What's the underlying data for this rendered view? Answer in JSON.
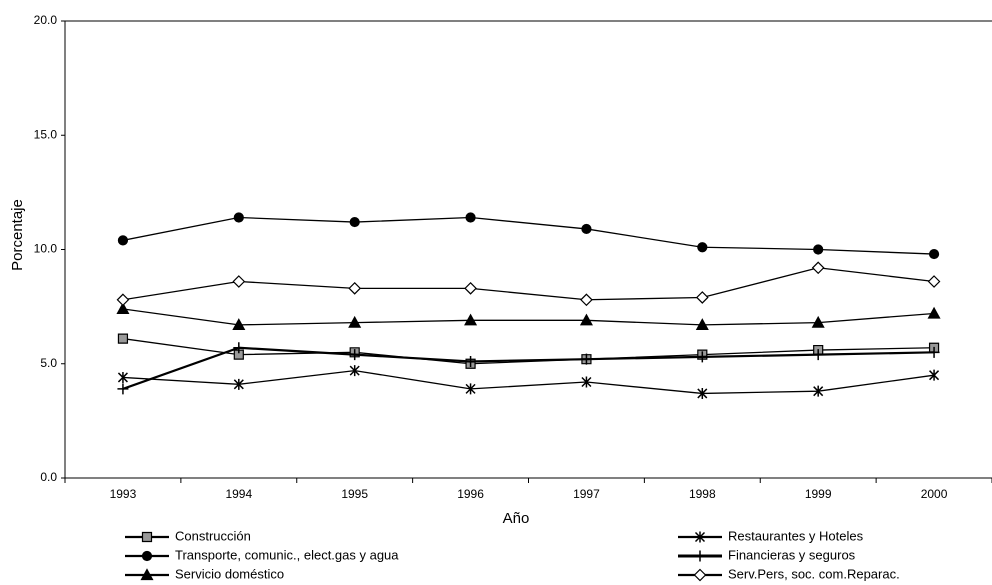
{
  "chart_data": {
    "type": "line",
    "y_label": "Porcentaje",
    "x_label": "Año",
    "categories": [
      "1993",
      "1994",
      "1995",
      "1996",
      "1997",
      "1998",
      "1999",
      "2000"
    ],
    "ylim": [
      0,
      20
    ],
    "yticks": [
      {
        "value": 0,
        "label": "0.0"
      },
      {
        "value": 5,
        "label": "5.0"
      },
      {
        "value": 10,
        "label": "10.0"
      },
      {
        "value": 15,
        "label": "15.0"
      },
      {
        "value": 20,
        "label": "20.0"
      }
    ],
    "series": [
      {
        "name": "Construcción",
        "color": "#000000",
        "marker": "square",
        "marker_fill": "#999999",
        "line_width": 1.3,
        "values": [
          6.1,
          5.4,
          5.5,
          5.0,
          5.2,
          5.4,
          5.6,
          5.7
        ]
      },
      {
        "name": "Transporte, comunic., elect.gas y agua",
        "color": "#000000",
        "marker": "circle",
        "marker_fill": "#000000",
        "line_width": 1.3,
        "values": [
          10.4,
          11.4,
          11.2,
          11.4,
          10.9,
          10.1,
          10.0,
          9.8
        ]
      },
      {
        "name": "Servicio doméstico",
        "color": "#000000",
        "marker": "triangle",
        "marker_fill": "#000000",
        "line_width": 1.3,
        "values": [
          7.4,
          6.7,
          6.8,
          6.9,
          6.9,
          6.7,
          6.8,
          7.2
        ]
      },
      {
        "name": "Restaurantes y Hoteles",
        "color": "#000000",
        "marker": "star",
        "marker_fill": "#000000",
        "line_width": 1.3,
        "values": [
          4.4,
          4.1,
          4.7,
          3.9,
          4.2,
          3.7,
          3.8,
          4.5
        ]
      },
      {
        "name": "Financieras y seguros",
        "color": "#000000",
        "marker": "plus",
        "marker_fill": "#000000",
        "line_width": 2.2,
        "values": [
          3.9,
          5.7,
          5.4,
          5.1,
          5.2,
          5.3,
          5.4,
          5.5
        ]
      },
      {
        "name": "Serv.Pers, soc. com.Reparac.",
        "color": "#000000",
        "marker": "diamond",
        "marker_fill": "#ffffff",
        "line_width": 1.3,
        "values": [
          7.8,
          8.6,
          8.3,
          8.3,
          7.8,
          7.9,
          9.2,
          8.6
        ]
      }
    ]
  }
}
